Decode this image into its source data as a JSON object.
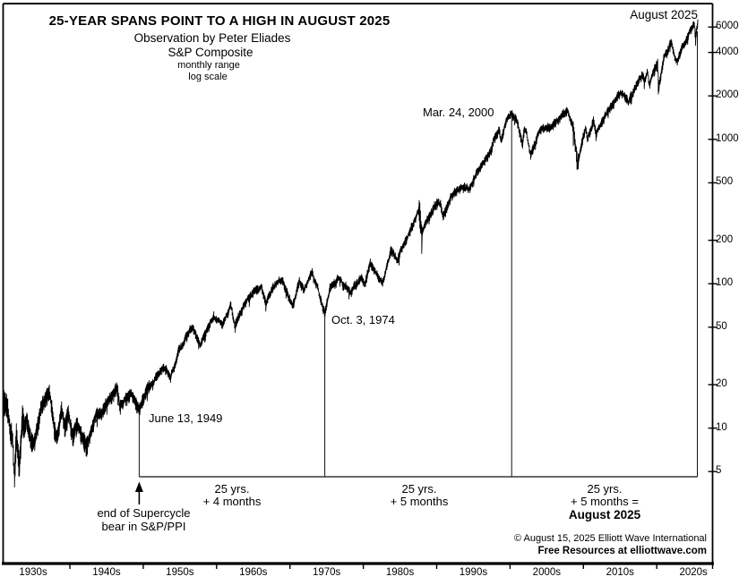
{
  "header": {
    "title": "25-YEAR SPANS POINT TO A HIGH IN AUGUST 2025",
    "subtitle1": "Observation by Peter Eliades",
    "subtitle2": "S&P Composite",
    "subtitle3": "monthly range",
    "subtitle4": "log scale"
  },
  "events": [
    {
      "label": "June 13, 1949",
      "year": 1949.45,
      "value": 13.55
    },
    {
      "label": "Oct. 3, 1974",
      "year": 1974.75,
      "value": 62.28
    },
    {
      "label": "Mar. 24, 2000",
      "year": 2000.22,
      "value": 1527.46
    },
    {
      "label": "August 2025",
      "year": 2025.6,
      "value": 6480
    }
  ],
  "spans": [
    {
      "line1": "25 yrs.",
      "line2": "+ 4 months",
      "line3": ""
    },
    {
      "line1": "25 yrs.",
      "line2": "+ 5 months",
      "line3": ""
    },
    {
      "line1": "25 yrs.",
      "line2": "+ 5 months =",
      "line3": "August 2025"
    }
  ],
  "supercycle_note": {
    "line1": "end of Supercycle",
    "line2": "bear in S&P/PPI"
  },
  "footer": {
    "copyright": "© August 15, 2025  Elliott Wave International",
    "resources": "Free Resources at elliottwave.com"
  },
  "axes": {
    "x_labels": [
      "1930s",
      "1940s",
      "1950s",
      "1960s",
      "1970s",
      "1980s",
      "1990s",
      "2000s",
      "2010s",
      "2020s"
    ],
    "decade_boundaries": [
      1940,
      1950,
      1960,
      1970,
      1980,
      1990,
      2000,
      2010,
      2020
    ],
    "y_ticks": [
      6000,
      4000,
      2000,
      1000,
      500,
      200,
      100,
      50,
      20,
      10,
      5
    ]
  },
  "colors": {
    "line": "#000000",
    "background": "#ffffff",
    "frame": "#000000"
  },
  "chart_data": {
    "type": "line",
    "subtype": "monthly-range",
    "title": "25-YEAR SPANS POINT TO A HIGH IN AUGUST 2025",
    "series_name": "S&P Composite",
    "yscale": "log",
    "x_range": [
      1931.0,
      2025.67
    ],
    "y_ticks": [
      6000,
      4000,
      2000,
      1000,
      500,
      200,
      100,
      50,
      20,
      10,
      5
    ],
    "x_tick_labels": [
      "1930s",
      "1940s",
      "1950s",
      "1960s",
      "1970s",
      "1980s",
      "1990s",
      "2000s",
      "2010s",
      "2020s"
    ],
    "events": [
      {
        "label": "June 13, 1949",
        "year": 1949.45,
        "value": 13.55
      },
      {
        "label": "Oct. 3, 1974",
        "year": 1974.75,
        "value": 62.28
      },
      {
        "label": "Mar. 24, 2000",
        "year": 2000.22,
        "value": 1527.46
      },
      {
        "label": "August 2025",
        "year": 2025.6,
        "value": 6480
      }
    ],
    "anchors": [
      [
        1931.0,
        15.98
      ],
      [
        1931.5,
        14.3
      ],
      [
        1931.9,
        9.7
      ],
      [
        1932.2,
        8.8
      ],
      [
        1932.45,
        4.4
      ],
      [
        1932.7,
        9.3
      ],
      [
        1933.1,
        5.53
      ],
      [
        1933.55,
        12.2
      ],
      [
        1933.8,
        10.1
      ],
      [
        1934.1,
        11.8
      ],
      [
        1934.7,
        8.36
      ],
      [
        1935.2,
        8.06
      ],
      [
        1936.1,
        14.0
      ],
      [
        1936.9,
        17.7
      ],
      [
        1937.2,
        18.68
      ],
      [
        1937.9,
        10.2
      ],
      [
        1938.25,
        8.5
      ],
      [
        1938.85,
        13.8
      ],
      [
        1939.3,
        10.2
      ],
      [
        1939.75,
        13.2
      ],
      [
        1940.4,
        8.99
      ],
      [
        1941.0,
        10.5
      ],
      [
        1942.3,
        7.47
      ],
      [
        1943.5,
        12.35
      ],
      [
        1944.5,
        13.3
      ],
      [
        1945.95,
        17.7
      ],
      [
        1946.4,
        19.25
      ],
      [
        1946.8,
        14.12
      ],
      [
        1947.5,
        16.2
      ],
      [
        1948.4,
        17.06
      ],
      [
        1949.45,
        13.55
      ],
      [
        1950.5,
        18.7
      ],
      [
        1951.8,
        23.8
      ],
      [
        1953.0,
        26.6
      ],
      [
        1953.7,
        22.71
      ],
      [
        1955.0,
        36.0
      ],
      [
        1956.6,
        49.74
      ],
      [
        1957.8,
        38.98
      ],
      [
        1959.6,
        60.71
      ],
      [
        1960.8,
        52.3
      ],
      [
        1961.95,
        72.64
      ],
      [
        1962.5,
        52.32
      ],
      [
        1963.8,
        74.0
      ],
      [
        1965.1,
        87.6
      ],
      [
        1966.1,
        94.06
      ],
      [
        1966.75,
        73.2
      ],
      [
        1967.7,
        97.6
      ],
      [
        1968.9,
        108.37
      ],
      [
        1970.4,
        69.29
      ],
      [
        1971.3,
        104.8
      ],
      [
        1971.9,
        90.2
      ],
      [
        1973.0,
        120.24
      ],
      [
        1973.8,
        92.2
      ],
      [
        1974.75,
        62.28
      ],
      [
        1975.5,
        95.6
      ],
      [
        1976.7,
        107.83
      ],
      [
        1978.2,
        86.9
      ],
      [
        1979.8,
        111.3
      ],
      [
        1980.2,
        98.2
      ],
      [
        1980.9,
        140.52
      ],
      [
        1982.6,
        102.42
      ],
      [
        1983.8,
        172.65
      ],
      [
        1984.55,
        147.82
      ],
      [
        1986.7,
        254.0
      ],
      [
        1987.65,
        336.77
      ],
      [
        1987.95,
        223.92
      ],
      [
        1989.75,
        359.8
      ],
      [
        1990.55,
        368.95
      ],
      [
        1990.8,
        295.46
      ],
      [
        1992.1,
        420.0
      ],
      [
        1994.1,
        482.0
      ],
      [
        1994.3,
        438.92
      ],
      [
        1995.9,
        636.0
      ],
      [
        1997.1,
        786.0
      ],
      [
        1997.75,
        983.0
      ],
      [
        1998.5,
        1186.75
      ],
      [
        1998.8,
        957.28
      ],
      [
        1999.5,
        1418.8
      ],
      [
        2000.22,
        1527.46
      ],
      [
        2000.9,
        1362.0
      ],
      [
        2001.7,
        944.75
      ],
      [
        2001.95,
        1172.0
      ],
      [
        2002.2,
        1170.0
      ],
      [
        2002.78,
        776.76
      ],
      [
        2004.0,
        1144.0
      ],
      [
        2005.5,
        1220.0
      ],
      [
        2007.4,
        1530.0
      ],
      [
        2007.78,
        1565.15
      ],
      [
        2008.7,
        1166.4
      ],
      [
        2009.2,
        676.53
      ],
      [
        2010.3,
        1217.0
      ],
      [
        2010.55,
        1022.6
      ],
      [
        2011.35,
        1363.6
      ],
      [
        2011.75,
        1074.8
      ],
      [
        2013.0,
        1480.0
      ],
      [
        2014.7,
        2011.0
      ],
      [
        2015.4,
        2130.82
      ],
      [
        2016.1,
        1829.1
      ],
      [
        2017.0,
        2278.9
      ],
      [
        2018.1,
        2872.87
      ],
      [
        2018.3,
        2581.0
      ],
      [
        2018.75,
        2930.75
      ],
      [
        2018.98,
        2346.6
      ],
      [
        2019.6,
        3025.9
      ],
      [
        2020.15,
        3386.15
      ],
      [
        2020.23,
        2191.9
      ],
      [
        2021.0,
        3756.1
      ],
      [
        2021.99,
        4796.56
      ],
      [
        2022.5,
        3666.8
      ],
      [
        2022.78,
        3577.03
      ],
      [
        2023.6,
        4588.9
      ],
      [
        2024.3,
        5254.4
      ],
      [
        2024.9,
        6090.3
      ],
      [
        2025.12,
        6144.15
      ],
      [
        2025.3,
        4982.8
      ],
      [
        2025.6,
        6480.0
      ]
    ]
  }
}
